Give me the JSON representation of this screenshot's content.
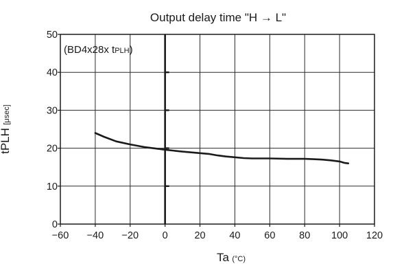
{
  "chart_data": {
    "type": "line",
    "title": "Output delay time \"H → L\"",
    "xlabel": "Ta",
    "xlabel_unit": "(°C)",
    "ylabel": "tPLH",
    "ylabel_unit": "[μsec]",
    "annotation": {
      "text": "(BD4x28x t",
      "subscript": "PLH",
      "close": ")"
    },
    "xlim": [
      -60,
      120
    ],
    "ylim": [
      0,
      50
    ],
    "xticks": [
      -60,
      -40,
      -20,
      0,
      20,
      40,
      60,
      80,
      100,
      120
    ],
    "yticks": [
      0,
      10,
      20,
      30,
      40,
      50
    ],
    "grid": true,
    "series": [
      {
        "color": "#1a1a1a",
        "x": [
          -40,
          -35,
          -28,
          -20,
          -12,
          -5,
          0,
          10,
          20,
          25,
          30,
          35,
          40,
          45,
          50,
          60,
          70,
          80,
          85,
          90,
          95,
          100,
          103,
          105
        ],
        "y": [
          24.0,
          23.0,
          21.8,
          21.0,
          20.3,
          19.9,
          19.6,
          19.1,
          18.7,
          18.5,
          18.1,
          17.8,
          17.6,
          17.4,
          17.3,
          17.3,
          17.2,
          17.2,
          17.1,
          17.0,
          16.8,
          16.5,
          16.1,
          16.0
        ]
      }
    ]
  }
}
